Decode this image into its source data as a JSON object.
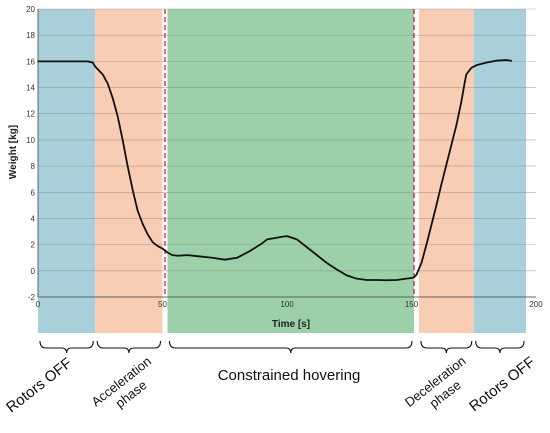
{
  "chart_data": {
    "type": "line",
    "title": "",
    "xlabel": "Time [s]",
    "ylabel": "Weight [kg]",
    "xlim": [
      0,
      200
    ],
    "ylim": [
      -2,
      20
    ],
    "xticks": [
      0,
      50,
      100,
      150,
      200
    ],
    "yticks": [
      -2,
      0,
      2,
      4,
      6,
      8,
      10,
      12,
      14,
      16,
      18,
      20
    ],
    "grid": "horizontal",
    "line_color": "#111111",
    "series": [
      {
        "x": [
          0,
          10,
          20,
          22,
          23,
          24,
          26,
          28,
          30,
          32,
          34,
          36,
          38,
          40,
          42,
          44,
          46,
          48,
          50,
          52,
          54,
          56,
          60,
          65,
          70,
          75,
          80,
          85,
          90,
          92,
          95,
          98,
          100,
          104,
          108,
          112,
          116,
          120,
          124,
          128,
          132,
          136,
          140,
          144,
          148,
          150,
          151,
          152,
          154,
          156,
          158,
          160,
          162,
          164,
          166,
          168,
          170,
          171,
          172,
          174,
          176,
          180,
          184,
          188,
          190
        ],
        "y": [
          16.0,
          16.0,
          16.0,
          15.9,
          15.6,
          15.4,
          15.0,
          14.3,
          13.2,
          11.8,
          10.0,
          8.0,
          6.2,
          4.6,
          3.6,
          2.8,
          2.2,
          1.9,
          1.7,
          1.4,
          1.2,
          1.15,
          1.2,
          1.1,
          1.0,
          0.85,
          1.0,
          1.5,
          2.1,
          2.4,
          2.5,
          2.6,
          2.65,
          2.4,
          1.8,
          1.2,
          0.6,
          0.1,
          -0.35,
          -0.6,
          -0.7,
          -0.7,
          -0.72,
          -0.7,
          -0.6,
          -0.55,
          -0.5,
          -0.3,
          0.6,
          2.0,
          3.5,
          5.0,
          6.6,
          8.1,
          9.6,
          11.1,
          12.9,
          14.0,
          15.0,
          15.5,
          15.7,
          15.9,
          16.05,
          16.1,
          16.05
        ]
      }
    ],
    "phases": [
      {
        "label": "Rotors OFF",
        "x_start": 0,
        "x_end": 23,
        "color": "#a9cfdb"
      },
      {
        "label": "Acceleration phase",
        "x_start": 23,
        "x_end": 50,
        "color": "#f9cdb3"
      },
      {
        "label": "Constrained hovering",
        "x_start": 52,
        "x_end": 151,
        "color": "#9cd0a9"
      },
      {
        "label": "Deceleration phase",
        "x_start": 153,
        "x_end": 175,
        "color": "#f9cdb3"
      },
      {
        "label": "Rotors OFF",
        "x_start": 175,
        "x_end": 196,
        "color": "#a9cfdb"
      }
    ],
    "transition_lines": {
      "x": [
        51,
        151
      ],
      "color": "#d01a40"
    }
  },
  "labels": {
    "rotors_off_left": "Rotors OFF",
    "accel_line1": "Acceleration",
    "accel_line2": "phase",
    "hovering": "Constrained hovering",
    "decel_line1": "Deceleration",
    "decel_line2": "phase",
    "rotors_off_right": "Rotors OFF"
  }
}
